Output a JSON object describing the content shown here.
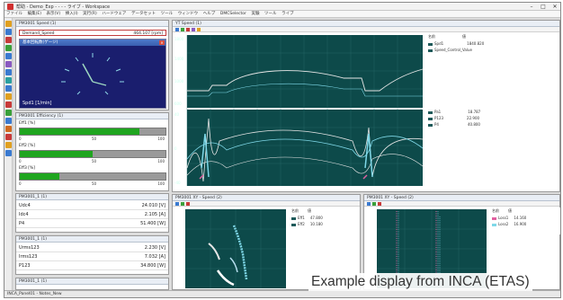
{
  "window": {
    "title": "帮助 - Demo_Exp - - - - ライブ - Workspace",
    "minimize": "–",
    "maximize": "□",
    "close": "✕"
  },
  "menu": [
    "ファイル",
    "編集(E)",
    "表示(V)",
    "挿入(I)",
    "実行(R)",
    "ハードウェア",
    "データセット",
    "ツール",
    "ウィンドウ",
    "ヘルプ",
    "DMCSelector",
    "実験",
    "ツール",
    "ライブ"
  ],
  "speed_panel": {
    "title": "PM3001 Speed (1)",
    "label": "Demand_Speed",
    "value": "464.107 [rpm]"
  },
  "gauge": {
    "title": "基本回転数(ゲージ)",
    "label": "Spd1 [1/min]"
  },
  "efficiency": {
    "title": "PM3001 Efficiency (1)",
    "bars": [
      {
        "label": "Eff1 [%]",
        "fill": 0.82,
        "ticks": [
          "0",
          "50",
          "100"
        ]
      },
      {
        "label": "Eff2 [%]",
        "fill": 0.5,
        "ticks": [
          "0",
          "50",
          "100"
        ]
      },
      {
        "label": "Eff3 [%]",
        "fill": 0.27,
        "ticks": [
          "0",
          "50",
          "100"
        ]
      }
    ]
  },
  "table1": {
    "title": "PM3001_1 (1)",
    "rows": [
      {
        "name": "Udc4",
        "value": "24.010 [V]"
      },
      {
        "name": "Idc4",
        "value": "2.105 [A]"
      },
      {
        "name": "P4",
        "value": "51.400 [W]"
      }
    ]
  },
  "table2": {
    "title": "PM3001_1 (1)",
    "rows": [
      {
        "name": "Urms123",
        "value": "2.230 [V]"
      },
      {
        "name": "Irms123",
        "value": "7.032 [A]"
      },
      {
        "name": "P123",
        "value": "34.800 [W]"
      }
    ]
  },
  "table3": {
    "title": "PM3001_1 (1)"
  },
  "yt_speed": {
    "title": "YT Speed (1)",
    "legend_top": [
      {
        "name": "Spd1",
        "value": "1840.820"
      },
      {
        "name": "Speed_Control_Value",
        "value": ""
      }
    ],
    "legend_bottom": [
      {
        "name": "Pa1",
        "value": "18.787"
      },
      {
        "name": "P123",
        "value": "22.900"
      },
      {
        "name": "P4",
        "value": "40.800"
      }
    ],
    "legend_header": [
      "名前",
      "値"
    ]
  },
  "xy_left": {
    "title": "PM3001 XY - Speed (2)",
    "legend_header": [
      "名前",
      "値"
    ],
    "legend": [
      {
        "name": "Eff1",
        "value": "47.800"
      },
      {
        "name": "Eff2",
        "value": "10.180"
      }
    ]
  },
  "xy_right": {
    "title": "PM3001 XY - Speed (2)",
    "legend_header": [
      "名前",
      "値"
    ],
    "legend": [
      {
        "name": "Loss1",
        "value": "14.160"
      },
      {
        "name": "Loss2",
        "value": "16.900"
      }
    ]
  },
  "status": {
    "text": "INCA_Panel01 - Notes_New"
  },
  "caption": "Example display from INCA (ETAS)",
  "colors": {
    "plot_bg": "#0d4a4a",
    "gauge_bg": "#1a1e6e",
    "bar_fill": "#1fa51f",
    "curve_white": "#e6e6e6",
    "curve_cyan": "#7fd8e8",
    "curve_pink": "#e060a0"
  }
}
